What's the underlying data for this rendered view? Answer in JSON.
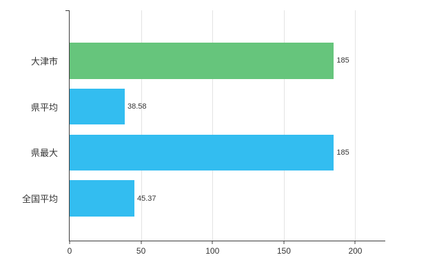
{
  "chart_data": {
    "type": "bar",
    "orientation": "horizontal",
    "title": "",
    "xlabel": "",
    "ylabel": "",
    "categories": [
      "大津市",
      "県平均",
      "県最大",
      "全国平均"
    ],
    "values": [
      185,
      38.58,
      185,
      45.37
    ],
    "value_labels": [
      "185",
      "38.58",
      "185",
      "45.37"
    ],
    "bar_colors": [
      "#66c57c",
      "#33bdf0",
      "#33bdf0",
      "#33bdf0"
    ],
    "xlim": [
      0,
      221
    ],
    "x_ticks": [
      0,
      50,
      100,
      150,
      200
    ],
    "grid": true,
    "legend": "none",
    "colors": {
      "green_bar": "#66c57c",
      "blue_bar": "#33bdf0",
      "axis": "#3c3c3c",
      "gridline": "#e3e3e3",
      "text": "#333333",
      "background": "#ffffff"
    }
  }
}
